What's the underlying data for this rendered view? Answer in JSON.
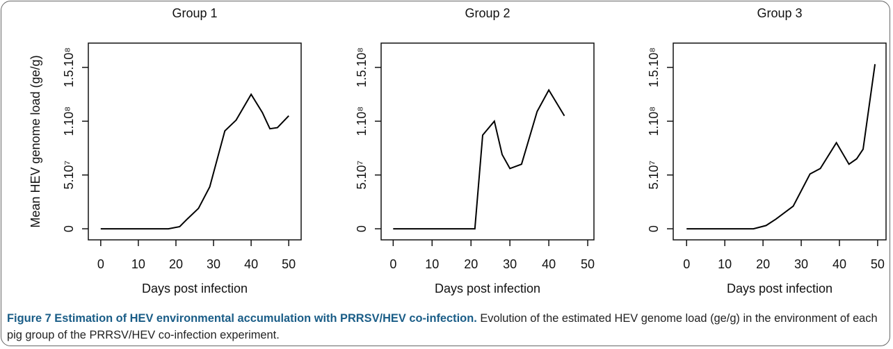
{
  "chart_data": [
    {
      "type": "line",
      "title": "Group 1",
      "y_label": "Mean HEV genome load (ge/g)",
      "x_label": "Days post infection",
      "x": [
        0,
        18,
        21,
        23,
        26,
        29,
        33,
        36,
        40,
        43,
        45,
        47,
        50
      ],
      "values": [
        0,
        0,
        2000000,
        9000000,
        19000000,
        39000000,
        91000000,
        101000000,
        125000000,
        108000000,
        93000000,
        94000000,
        105000000
      ],
      "color": "#000000",
      "xlim": [
        -3.3,
        53.3
      ],
      "ylim": [
        -10300000,
        172600000
      ],
      "xticks": [
        0,
        10,
        20,
        30,
        40,
        50
      ],
      "yticks": [
        0,
        {
          "value": 50000000,
          "label": "5.10⁷"
        },
        {
          "value": 100000000,
          "label": "1.10⁸"
        },
        {
          "value": 150000000,
          "label": "1.5.10⁸"
        }
      ]
    },
    {
      "type": "line",
      "title": "Group 2",
      "x_label": "Days post infection",
      "x": [
        0,
        21,
        23,
        26,
        28,
        30,
        33,
        37,
        40,
        44
      ],
      "values": [
        0,
        0,
        87000000,
        100000000,
        69000000,
        56000000,
        60000000,
        109000000,
        129000000,
        105000000
      ],
      "color": "#000000",
      "xlim": [
        -3.1,
        51.6
      ],
      "ylim": [
        -10300000,
        172600000
      ],
      "xticks": [
        0,
        10,
        20,
        30,
        40,
        50
      ],
      "yticks": [
        0,
        {
          "value": 50000000,
          "label": "5.10⁷"
        },
        {
          "value": 100000000,
          "label": "1.10⁸"
        },
        {
          "value": 150000000,
          "label": "1.5.10⁸"
        }
      ]
    },
    {
      "type": "line",
      "title": "Group 3",
      "x_label": "Days post infection",
      "x": [
        0,
        17.5,
        20.8,
        23.4,
        27.9,
        32.3,
        35,
        39.2,
        42.5,
        44.5,
        46.2,
        49.3
      ],
      "values": [
        0,
        0,
        3000000,
        9000000,
        21000000,
        51000000,
        56000000,
        80000000,
        60000000,
        65000000,
        74000000,
        153000000
      ],
      "color": "#000000",
      "xlim": [
        -3.5,
        52.2
      ],
      "ylim": [
        -10300000,
        172600000
      ],
      "xticks": [
        0,
        10,
        20,
        30,
        40,
        50
      ],
      "yticks": [
        0,
        {
          "value": 50000000,
          "label": "5.10⁷"
        },
        {
          "value": 100000000,
          "label": "1.10⁸"
        },
        {
          "value": 150000000,
          "label": "1.5.10⁸"
        }
      ]
    }
  ],
  "caption": {
    "title": "Figure 7 Estimation of HEV environmental accumulation with PRRSV/HEV co-infection.",
    "text": "Evolution of the estimated HEV genome load (ge/g) in the environment of each pig group of the PRRSV/HEV co-infection experiment."
  }
}
